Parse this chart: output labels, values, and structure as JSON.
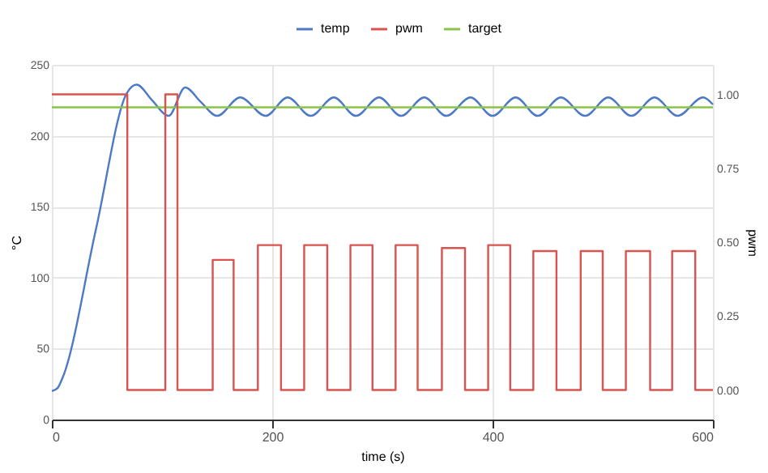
{
  "chart_data": {
    "type": "line",
    "xlabel": "time (s)",
    "ylabel": "°C",
    "y2label": "pwm",
    "xlim": [
      0,
      600
    ],
    "xticks": [
      0,
      200,
      400,
      600
    ],
    "ylim": [
      0,
      250
    ],
    "yticks": [
      0,
      50,
      100,
      150,
      200,
      250
    ],
    "y2lim": [
      -0.1,
      1.1
    ],
    "y2ticks": [
      {
        "value": 0,
        "label": "0.00"
      },
      {
        "value": 0.25,
        "label": "0.25"
      },
      {
        "value": 0.5,
        "label": "0.50"
      },
      {
        "value": 0.75,
        "label": "0.75"
      },
      {
        "value": 1,
        "label": "1.00"
      }
    ],
    "grid": true,
    "legend": "top",
    "line_style": "solid",
    "marker": "none",
    "series": [
      {
        "name": "temp",
        "color": "#4e79c4",
        "type": "line",
        "x": [
          0,
          5,
          10,
          40,
          68,
          77,
          91,
          106,
          121,
          135,
          150,
          171,
          194,
          214,
          235,
          256,
          276,
          297,
          317,
          338,
          358,
          380,
          400,
          421,
          441,
          462,
          484,
          505,
          526,
          547,
          568,
          591,
          600
        ],
        "values": [
          20,
          22,
          30,
          134,
          230,
          236,
          225,
          214,
          234,
          224,
          214,
          227,
          214,
          227,
          214,
          227,
          214,
          227,
          214,
          227,
          214,
          227,
          214,
          227,
          214,
          227,
          214,
          227,
          214,
          227,
          214,
          227,
          222
        ]
      },
      {
        "name": "pwm",
        "color": "#d9534f",
        "type": "step",
        "axis": "y2",
        "x": [
          0,
          68.5,
          103,
          114,
          146,
          165,
          187,
          208,
          229,
          250,
          271,
          291,
          312,
          332,
          354,
          375,
          396,
          416,
          437,
          458,
          480,
          500,
          521,
          543,
          563,
          584,
          600
        ],
        "values": [
          1,
          0,
          1,
          0,
          0.44,
          0,
          0.49,
          0,
          0.49,
          0,
          0.49,
          0,
          0.49,
          0,
          0.48,
          0,
          0.49,
          0,
          0.47,
          0,
          0.47,
          0,
          0.47,
          0,
          0.47,
          0,
          0
        ]
      },
      {
        "name": "target",
        "color": "#8bc34a",
        "type": "line",
        "x": [
          0,
          600
        ],
        "values": [
          220,
          220
        ]
      }
    ]
  }
}
